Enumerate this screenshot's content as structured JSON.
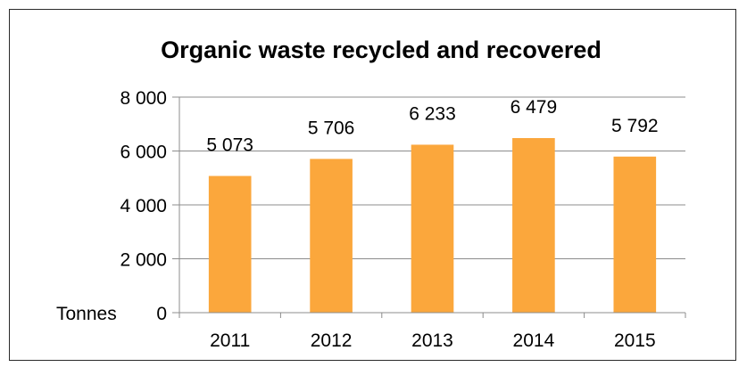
{
  "chart_data": {
    "type": "bar",
    "title": "Organic waste recycled and recovered",
    "ylabel": "Tonnes",
    "xlabel": "",
    "categories": [
      "2011",
      "2012",
      "2013",
      "2014",
      "2015"
    ],
    "values": [
      5073,
      5706,
      6233,
      6479,
      5792
    ],
    "data_labels": [
      "5 073",
      "5 706",
      "6 233",
      "6 479",
      "5 792"
    ],
    "ylim": [
      0,
      8000
    ],
    "yticks": [
      0,
      2000,
      4000,
      6000,
      8000
    ],
    "ytick_labels": [
      "0",
      "2 000",
      "4 000",
      "6 000",
      "8 000"
    ],
    "grid": true,
    "legend": "none",
    "bar_color": "#fba73c",
    "grid_color": "#8c8c8c"
  }
}
